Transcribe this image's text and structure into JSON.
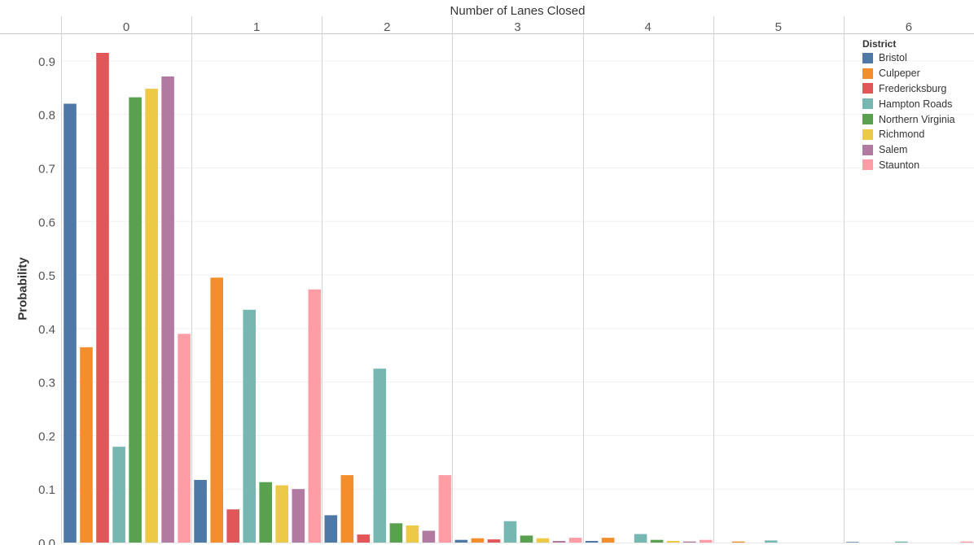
{
  "chart_data": {
    "type": "bar",
    "title": "",
    "column_header": "Number of Lanes Closed",
    "categories": [
      "0",
      "1",
      "2",
      "3",
      "4",
      "5",
      "6"
    ],
    "ylabel": "Probability",
    "ylim": [
      0,
      0.95
    ],
    "yticks": [
      "0.0",
      "0.1",
      "0.2",
      "0.3",
      "0.4",
      "0.5",
      "0.6",
      "0.7",
      "0.8",
      "0.9"
    ],
    "grid": true,
    "legend": {
      "title": "District",
      "position": "top-right"
    },
    "series": [
      {
        "name": "Bristol",
        "color": "#4e79a7",
        "values": [
          0.82,
          0.117,
          0.051,
          0.005,
          0.003,
          0,
          0.001
        ]
      },
      {
        "name": "Culpeper",
        "color": "#f28e2b",
        "values": [
          0.365,
          0.495,
          0.126,
          0.008,
          0.009,
          0.002,
          0
        ]
      },
      {
        "name": "Fredericksburg",
        "color": "#e15759",
        "values": [
          0.915,
          0.062,
          0.015,
          0.006,
          0,
          0,
          0
        ]
      },
      {
        "name": "Hampton Roads",
        "color": "#76b7b2",
        "values": [
          0.179,
          0.435,
          0.325,
          0.04,
          0.016,
          0.004,
          0.002
        ]
      },
      {
        "name": "Northern Virginia",
        "color": "#59a14f",
        "values": [
          0.832,
          0.113,
          0.036,
          0.013,
          0.005,
          0,
          0
        ]
      },
      {
        "name": "Richmond",
        "color": "#edc948",
        "values": [
          0.848,
          0.107,
          0.032,
          0.008,
          0.003,
          0,
          0
        ]
      },
      {
        "name": "Salem",
        "color": "#b07aa1",
        "values": [
          0.871,
          0.1,
          0.022,
          0.003,
          0.002,
          0,
          0
        ]
      },
      {
        "name": "Staunton",
        "color": "#ff9da7",
        "values": [
          0.39,
          0.473,
          0.126,
          0.009,
          0.005,
          0,
          0.002
        ]
      }
    ]
  }
}
